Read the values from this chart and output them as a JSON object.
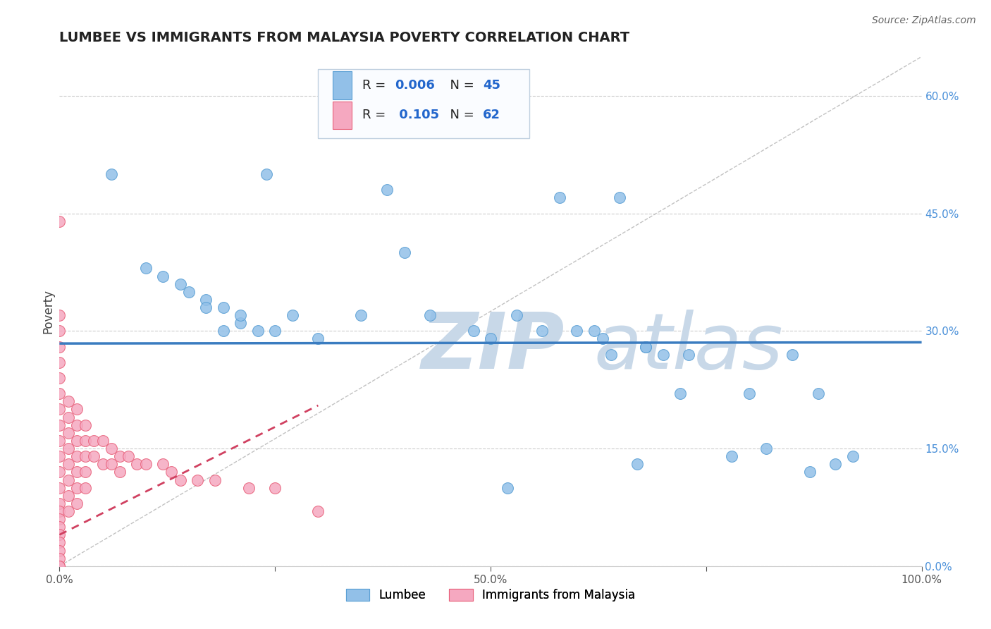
{
  "title": "LUMBEE VS IMMIGRANTS FROM MALAYSIA POVERTY CORRELATION CHART",
  "source": "Source: ZipAtlas.com",
  "ylabel": "Poverty",
  "xlim": [
    0,
    1
  ],
  "ylim": [
    0,
    0.65
  ],
  "y_ticks_right": [
    0.0,
    0.15,
    0.3,
    0.45,
    0.6
  ],
  "y_tick_labels_right": [
    "0.0%",
    "15.0%",
    "30.0%",
    "45.0%",
    "60.0%"
  ],
  "lumbee_color": "#92C0E8",
  "malaysia_color": "#F5A8C0",
  "malaysia_edge_color": "#E8607A",
  "lumbee_edge_color": "#5A9FD4",
  "lumbee_R": 0.006,
  "lumbee_N": 45,
  "malaysia_R": 0.105,
  "malaysia_N": 62,
  "lumbee_trend_intercept": 0.284,
  "lumbee_trend_slope": 0.0015,
  "malaysia_trend_intercept": 0.04,
  "malaysia_trend_slope": 0.55,
  "trend_color_lumbee": "#3A7CC0",
  "trend_color_malaysia": "#D04060",
  "watermark_color": "#C8D8E8",
  "background_color": "#ffffff",
  "lumbee_x": [
    0.06,
    0.24,
    0.1,
    0.12,
    0.14,
    0.15,
    0.17,
    0.17,
    0.19,
    0.19,
    0.21,
    0.21,
    0.23,
    0.25,
    0.27,
    0.3,
    0.35,
    0.38,
    0.4,
    0.43,
    0.48,
    0.5,
    0.53,
    0.56,
    0.6,
    0.62,
    0.63,
    0.65,
    0.68,
    0.7,
    0.72,
    0.73,
    0.8,
    0.85,
    0.88,
    0.92,
    0.64,
    0.67,
    0.78,
    0.82,
    0.87,
    0.9,
    0.68,
    0.52,
    0.58
  ],
  "lumbee_y": [
    0.5,
    0.5,
    0.38,
    0.37,
    0.36,
    0.35,
    0.34,
    0.33,
    0.33,
    0.3,
    0.31,
    0.32,
    0.3,
    0.3,
    0.32,
    0.29,
    0.32,
    0.48,
    0.4,
    0.32,
    0.3,
    0.29,
    0.32,
    0.3,
    0.3,
    0.3,
    0.29,
    0.47,
    0.28,
    0.27,
    0.22,
    0.27,
    0.22,
    0.27,
    0.22,
    0.14,
    0.27,
    0.13,
    0.14,
    0.15,
    0.12,
    0.13,
    0.28,
    0.1,
    0.47
  ],
  "malaysia_x": [
    0.0,
    0.0,
    0.0,
    0.0,
    0.0,
    0.0,
    0.0,
    0.0,
    0.0,
    0.0,
    0.0,
    0.0,
    0.0,
    0.0,
    0.0,
    0.0,
    0.0,
    0.0,
    0.0,
    0.0,
    0.0,
    0.0,
    0.0,
    0.01,
    0.01,
    0.01,
    0.01,
    0.01,
    0.01,
    0.01,
    0.01,
    0.02,
    0.02,
    0.02,
    0.02,
    0.02,
    0.02,
    0.02,
    0.03,
    0.03,
    0.03,
    0.03,
    0.03,
    0.04,
    0.04,
    0.05,
    0.05,
    0.06,
    0.06,
    0.07,
    0.07,
    0.08,
    0.09,
    0.1,
    0.12,
    0.13,
    0.14,
    0.16,
    0.18,
    0.22,
    0.25,
    0.3
  ],
  "malaysia_y": [
    0.44,
    0.32,
    0.3,
    0.28,
    0.26,
    0.24,
    0.22,
    0.2,
    0.18,
    0.16,
    0.14,
    0.12,
    0.1,
    0.08,
    0.07,
    0.06,
    0.05,
    0.04,
    0.03,
    0.02,
    0.01,
    0.0,
    0.0,
    0.21,
    0.19,
    0.17,
    0.15,
    0.13,
    0.11,
    0.09,
    0.07,
    0.2,
    0.18,
    0.16,
    0.14,
    0.12,
    0.1,
    0.08,
    0.18,
    0.16,
    0.14,
    0.12,
    0.1,
    0.16,
    0.14,
    0.16,
    0.13,
    0.15,
    0.13,
    0.14,
    0.12,
    0.14,
    0.13,
    0.13,
    0.13,
    0.12,
    0.11,
    0.11,
    0.11,
    0.1,
    0.1,
    0.07
  ],
  "legend_box_color": "#FAFCFF",
  "legend_border_color": "#C0D0E0"
}
